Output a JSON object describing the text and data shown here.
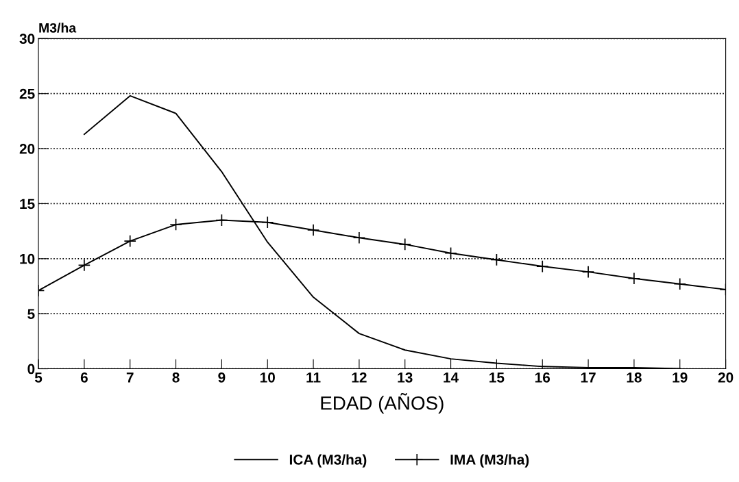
{
  "chart_data": {
    "type": "line",
    "xlabel": "EDAD (AÑOS)",
    "ylabel": "M3/ha",
    "xlim": [
      5,
      20
    ],
    "xticks": [
      5,
      6,
      7,
      8,
      9,
      10,
      11,
      12,
      13,
      14,
      15,
      16,
      17,
      18,
      19,
      20
    ],
    "ylim": [
      0,
      30
    ],
    "yticks": [
      0,
      5,
      10,
      15,
      20,
      25,
      30
    ],
    "grid": "y",
    "legend": "bottom",
    "line_style": "solid",
    "series": [
      {
        "name": "ICA (M3/ha)",
        "color": "#000000",
        "marker": "none",
        "x": [
          6,
          7,
          8,
          9,
          10,
          11,
          12,
          13,
          14,
          15,
          16,
          17,
          18,
          19
        ],
        "values": [
          21.3,
          24.8,
          23.2,
          17.9,
          11.5,
          6.5,
          3.2,
          1.7,
          0.9,
          0.5,
          0.2,
          0.1,
          0.1,
          0.0
        ]
      },
      {
        "name": "IMA (M3/ha)",
        "color": "#000000",
        "marker": "cross",
        "x": [
          5,
          6,
          7,
          8,
          9,
          10,
          11,
          12,
          13,
          14,
          15,
          16,
          17,
          18,
          19,
          20
        ],
        "values": [
          7.1,
          9.4,
          11.6,
          13.1,
          13.5,
          13.3,
          12.6,
          11.9,
          11.3,
          10.5,
          9.9,
          9.3,
          8.8,
          8.2,
          7.7,
          7.2
        ]
      }
    ]
  }
}
